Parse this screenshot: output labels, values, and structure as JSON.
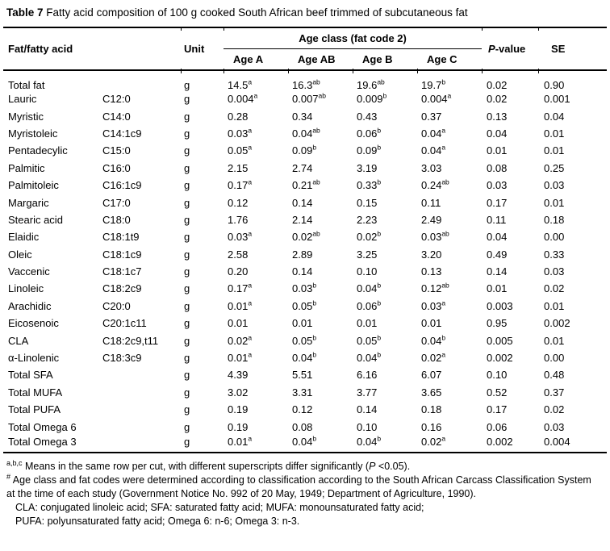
{
  "title": {
    "label": "Table 7",
    "text": "Fatty acid composition of 100 g cooked South African beef trimmed of subcutaneous fat"
  },
  "table": {
    "headers": {
      "fat_fatty_acid": "Fat/fatty acid",
      "unit": "Unit",
      "age_class_group": "Age class (fat code 2)",
      "age_a": "Age A",
      "age_ab": "Age AB",
      "age_b": "Age B",
      "age_c": "Age C",
      "p_italic": "P",
      "p_rest": "-value",
      "se": "SE"
    },
    "superscript_separator": "^",
    "rows": [
      {
        "name": "Total fat",
        "code": "",
        "unit": "g",
        "a": "14.5^a",
        "ab": "16.3^ab",
        "b": "19.6^ab",
        "c": "19.7^b",
        "p": "0.02",
        "se": "0.90"
      },
      {
        "name": "Lauric",
        "code": "C12:0",
        "unit": "g",
        "a": "0.004^a",
        "ab": "0.007^ab",
        "b": "0.009^b",
        "c": "0.004^a",
        "p": "0.02",
        "se": "0.001"
      },
      {
        "name": "Myristic",
        "code": "C14:0",
        "unit": "g",
        "a": "0.28",
        "ab": "0.34",
        "b": "0.43",
        "c": "0.37",
        "p": "0.13",
        "se": "0.04"
      },
      {
        "name": "Myristoleic",
        "code": "C14:1c9",
        "unit": "g",
        "a": "0.03^a",
        "ab": "0.04^ab",
        "b": "0.06^b",
        "c": "0.04^a",
        "p": "0.04",
        "se": "0.01"
      },
      {
        "name": "Pentadecylic",
        "code": "C15:0",
        "unit": "g",
        "a": "0.05^a",
        "ab": "0.09^b",
        "b": "0.09^b",
        "c": "0.04^a",
        "p": "0.01",
        "se": "0.01"
      },
      {
        "name": "Palmitic",
        "code": "C16:0",
        "unit": "g",
        "a": "2.15",
        "ab": "2.74",
        "b": "3.19",
        "c": "3.03",
        "p": "0.08",
        "se": "0.25"
      },
      {
        "name": "Palmitoleic",
        "code": "C16:1c9",
        "unit": "g",
        "a": "0.17^a",
        "ab": "0.21^ab",
        "b": "0.33^b",
        "c": "0.24^ab",
        "p": "0.03",
        "se": "0.03"
      },
      {
        "name": "Margaric",
        "code": "C17:0",
        "unit": "g",
        "a": "0.12",
        "ab": "0.14",
        "b": "0.15",
        "c": "0.11",
        "p": "0.17",
        "se": "0.01"
      },
      {
        "name": "Stearic acid",
        "code": "C18:0",
        "unit": "g",
        "a": "1.76",
        "ab": "2.14",
        "b": "2.23",
        "c": "2.49",
        "p": "0.11",
        "se": "0.18"
      },
      {
        "name": "Elaidic",
        "code": "C18:1t9",
        "unit": "g",
        "a": "0.03^a",
        "ab": "0.02^ab",
        "b": "0.02^b",
        "c": "0.03^ab",
        "p": "0.04",
        "se": "0.00"
      },
      {
        "name": "Oleic",
        "code": "C18:1c9",
        "unit": "g",
        "a": "2.58",
        "ab": "2.89",
        "b": "3.25",
        "c": "3.20",
        "p": "0.49",
        "se": "0.33"
      },
      {
        "name": "Vaccenic",
        "code": "C18:1c7",
        "unit": "g",
        "a": "0.20",
        "ab": "0.14",
        "b": "0.10",
        "c": "0.13",
        "p": "0.14",
        "se": "0.03"
      },
      {
        "name": "Linoleic",
        "code": "C18:2c9",
        "unit": "g",
        "a": "0.17^a",
        "ab": "0.03^b",
        "b": "0.04^b",
        "c": "0.12^ab",
        "p": "0.01",
        "se": "0.02"
      },
      {
        "name": "Arachidic",
        "code": "C20:0",
        "unit": "g",
        "a": "0.01^a",
        "ab": "0.05^b",
        "b": "0.06^b",
        "c": "0.03^a",
        "p": "0.003",
        "se": "0.01"
      },
      {
        "name": "Eicosenoic",
        "code": "C20:1c11",
        "unit": "g",
        "a": "0.01",
        "ab": "0.01",
        "b": "0.01",
        "c": "0.01",
        "p": "0.95",
        "se": "0.002"
      },
      {
        "name": "CLA",
        "code": "C18:2c9,t11",
        "unit": "g",
        "a": "0.02^a",
        "ab": "0.05^b",
        "b": "0.05^b",
        "c": "0.04^b",
        "p": "0.005",
        "se": "0.01"
      },
      {
        "name": "α-Linolenic",
        "code": "C18:3c9",
        "unit": "g",
        "a": "0.01^a",
        "ab": "0.04^b",
        "b": "0.04^b",
        "c": "0.02^a",
        "p": "0.002",
        "se": "0.00"
      },
      {
        "name": "Total SFA",
        "code": "",
        "unit": "g",
        "a": "4.39",
        "ab": "5.51",
        "b": "6.16",
        "c": "6.07",
        "p": "0.10",
        "se": "0.48"
      },
      {
        "name": "Total MUFA",
        "code": "",
        "unit": "g",
        "a": "3.02",
        "ab": "3.31",
        "b": "3.77",
        "c": "3.65",
        "p": "0.52",
        "se": "0.37"
      },
      {
        "name": "Total PUFA",
        "code": "",
        "unit": "g",
        "a": "0.19",
        "ab": "0.12",
        "b": "0.14",
        "c": "0.18",
        "p": "0.17",
        "se": "0.02"
      },
      {
        "name": "Total Omega 6",
        "code": "",
        "unit": "g",
        "a": "0.19",
        "ab": "0.08",
        "b": "0.10",
        "c": "0.16",
        "p": "0.06",
        "se": "0.03"
      },
      {
        "name": "Total Omega 3",
        "code": "",
        "unit": "g",
        "a": "0.01^a",
        "ab": "0.04^b",
        "b": "0.04^b",
        "c": "0.02^a",
        "p": "0.002",
        "se": "0.004"
      }
    ]
  },
  "footnotes": {
    "sig": {
      "sup": "a,b,c",
      "pre": " Means in the same row per cut, with different superscripts differ significantly (",
      "p": "P",
      "post": " <0.05)."
    },
    "age_class": {
      "sup": "#",
      "text": " Age class and fat codes were determined according to classification according to the South African Carcass Classification System at the time of each study (Government Notice No. 992 of 20 May, 1949; Department of Agriculture, 1990)."
    },
    "abbrev1": "CLA: conjugated linoleic acid; SFA: saturated fatty acid; MUFA: monounsaturated fatty acid;",
    "abbrev2": "PUFA: polyunsaturated fatty acid; Omega 6: n-6; Omega 3: n-3."
  }
}
